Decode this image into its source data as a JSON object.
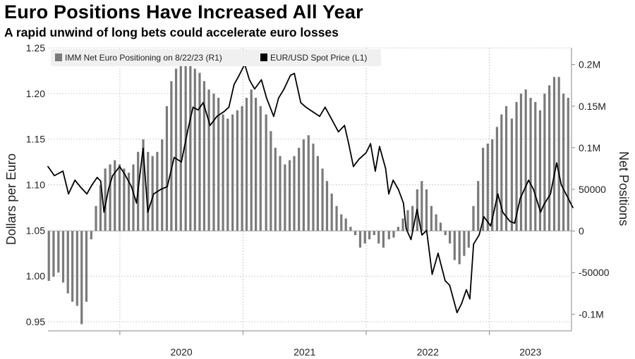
{
  "title": "Euro Positions Have Increased All Year",
  "subtitle": "A rapid unwind of long bets could accelerate euro losses",
  "colors": {
    "bars": "#7a7a7a",
    "line": "#000000",
    "grid": "#cfcfcf",
    "legend_bg": "#f0f0f0"
  },
  "chart_data": {
    "type": "bar+line",
    "grid": true,
    "legend_position": "top-left",
    "x": {
      "ticks": [
        "2020",
        "2021",
        "2022",
        "2023"
      ],
      "range": [
        "2019-06",
        "2023-09"
      ]
    },
    "y_left": {
      "label": "Dollars per Euro",
      "ticks": [
        "1.25",
        "1.20",
        "1.15",
        "1.10",
        "1.05",
        "1.00",
        "0.95"
      ],
      "range": [
        0.94,
        1.25
      ]
    },
    "y_right": {
      "label": "Net Positions",
      "ticks": [
        "0.2M",
        "0.15M",
        "0.1M",
        "50000",
        "0",
        "-50000",
        "-0.1M"
      ],
      "range": [
        -120000,
        220000
      ]
    },
    "legend": [
      {
        "name": "IMM Net Euro Positioning  on 8/22/23 (R1)",
        "type": "bar"
      },
      {
        "name": "EUR/USD Spot Price (L1)",
        "type": "line"
      }
    ],
    "series": [
      {
        "name": "IMM Net Euro Positioning  on 8/22/23 (R1)",
        "type": "bar",
        "axis": "right",
        "points": [
          [
            "2019-06-04",
            -60000
          ],
          [
            "2019-06-18",
            -55000
          ],
          [
            "2019-07-02",
            -50000
          ],
          [
            "2019-07-16",
            -62000
          ],
          [
            "2019-07-30",
            -75000
          ],
          [
            "2019-08-13",
            -85000
          ],
          [
            "2019-08-27",
            -90000
          ],
          [
            "2019-09-10",
            -112000
          ],
          [
            "2019-09-24",
            -85000
          ],
          [
            "2019-10-08",
            -10000
          ],
          [
            "2019-10-22",
            30000
          ],
          [
            "2019-11-05",
            55000
          ],
          [
            "2019-11-19",
            75000
          ],
          [
            "2019-12-03",
            80000
          ],
          [
            "2019-12-17",
            85000
          ],
          [
            "2019-12-31",
            80000
          ],
          [
            "2020-01-14",
            75000
          ],
          [
            "2020-01-28",
            70000
          ],
          [
            "2020-02-11",
            80000
          ],
          [
            "2020-02-25",
            95000
          ],
          [
            "2020-03-10",
            110000
          ],
          [
            "2020-03-24",
            95000
          ],
          [
            "2020-04-07",
            90000
          ],
          [
            "2020-04-21",
            95000
          ],
          [
            "2020-05-05",
            110000
          ],
          [
            "2020-05-19",
            150000
          ],
          [
            "2020-06-02",
            180000
          ],
          [
            "2020-06-16",
            195000
          ],
          [
            "2020-06-30",
            200000
          ],
          [
            "2020-07-14",
            210000
          ],
          [
            "2020-07-28",
            200000
          ],
          [
            "2020-08-11",
            195000
          ],
          [
            "2020-08-25",
            190000
          ],
          [
            "2020-09-08",
            180000
          ],
          [
            "2020-09-22",
            170000
          ],
          [
            "2020-10-06",
            165000
          ],
          [
            "2020-10-20",
            160000
          ],
          [
            "2020-11-03",
            140000
          ],
          [
            "2020-11-17",
            135000
          ],
          [
            "2020-12-01",
            140000
          ],
          [
            "2020-12-15",
            145000
          ],
          [
            "2020-12-29",
            150000
          ],
          [
            "2021-01-12",
            160000
          ],
          [
            "2021-01-26",
            170000
          ],
          [
            "2021-02-09",
            160000
          ],
          [
            "2021-02-23",
            150000
          ],
          [
            "2021-03-09",
            140000
          ],
          [
            "2021-03-23",
            120000
          ],
          [
            "2021-04-06",
            100000
          ],
          [
            "2021-04-20",
            90000
          ],
          [
            "2021-05-04",
            80000
          ],
          [
            "2021-05-18",
            85000
          ],
          [
            "2021-06-01",
            90000
          ],
          [
            "2021-06-15",
            100000
          ],
          [
            "2021-06-29",
            110000
          ],
          [
            "2021-07-13",
            115000
          ],
          [
            "2021-07-27",
            105000
          ],
          [
            "2021-08-10",
            90000
          ],
          [
            "2021-08-24",
            75000
          ],
          [
            "2021-09-07",
            60000
          ],
          [
            "2021-09-21",
            45000
          ],
          [
            "2021-10-05",
            30000
          ],
          [
            "2021-10-19",
            20000
          ],
          [
            "2021-11-02",
            15000
          ],
          [
            "2021-11-16",
            5000
          ],
          [
            "2021-11-30",
            -5000
          ],
          [
            "2021-12-14",
            -20000
          ],
          [
            "2021-12-28",
            -15000
          ],
          [
            "2022-01-11",
            -10000
          ],
          [
            "2022-01-25",
            -5000
          ],
          [
            "2022-02-08",
            -15000
          ],
          [
            "2022-02-22",
            -20000
          ],
          [
            "2022-03-08",
            -10000
          ],
          [
            "2022-03-22",
            -8000
          ],
          [
            "2022-04-05",
            5000
          ],
          [
            "2022-04-19",
            15000
          ],
          [
            "2022-05-03",
            25000
          ],
          [
            "2022-05-17",
            30000
          ],
          [
            "2022-05-31",
            50000
          ],
          [
            "2022-06-14",
            60000
          ],
          [
            "2022-06-28",
            50000
          ],
          [
            "2022-07-12",
            30000
          ],
          [
            "2022-07-26",
            20000
          ],
          [
            "2022-08-09",
            10000
          ],
          [
            "2022-08-23",
            -5000
          ],
          [
            "2022-09-06",
            -15000
          ],
          [
            "2022-09-20",
            -35000
          ],
          [
            "2022-10-04",
            -40000
          ],
          [
            "2022-10-18",
            -30000
          ],
          [
            "2022-11-01",
            -20000
          ],
          [
            "2022-11-15",
            30000
          ],
          [
            "2022-11-29",
            60000
          ],
          [
            "2022-12-13",
            100000
          ],
          [
            "2022-12-27",
            105000
          ],
          [
            "2023-01-10",
            110000
          ],
          [
            "2023-01-24",
            125000
          ],
          [
            "2023-02-07",
            140000
          ],
          [
            "2023-02-21",
            150000
          ],
          [
            "2023-03-07",
            135000
          ],
          [
            "2023-03-21",
            155000
          ],
          [
            "2023-04-04",
            165000
          ],
          [
            "2023-04-18",
            170000
          ],
          [
            "2023-05-02",
            160000
          ],
          [
            "2023-05-16",
            155000
          ],
          [
            "2023-05-30",
            145000
          ],
          [
            "2023-06-13",
            165000
          ],
          [
            "2023-06-27",
            175000
          ],
          [
            "2023-07-11",
            185000
          ],
          [
            "2023-07-25",
            185000
          ],
          [
            "2023-08-08",
            165000
          ],
          [
            "2023-08-22",
            160000
          ]
        ]
      },
      {
        "name": "EUR/USD Spot Price (L1)",
        "type": "line",
        "axis": "left",
        "points": [
          [
            "2019-06-01",
            1.12
          ],
          [
            "2019-06-20",
            1.11
          ],
          [
            "2019-07-15",
            1.115
          ],
          [
            "2019-08-01",
            1.09
          ],
          [
            "2019-08-20",
            1.105
          ],
          [
            "2019-09-05",
            1.098
          ],
          [
            "2019-09-25",
            1.09
          ],
          [
            "2019-10-10",
            1.1
          ],
          [
            "2019-10-25",
            1.108
          ],
          [
            "2019-11-05",
            1.104
          ],
          [
            "2019-11-15",
            1.07
          ],
          [
            "2019-11-28",
            1.095
          ],
          [
            "2019-12-10",
            1.11
          ],
          [
            "2019-12-31",
            1.12
          ],
          [
            "2020-01-15",
            1.112
          ],
          [
            "2020-02-05",
            1.098
          ],
          [
            "2020-02-20",
            1.08
          ],
          [
            "2020-03-09",
            1.14
          ],
          [
            "2020-03-23",
            1.07
          ],
          [
            "2020-04-10",
            1.09
          ],
          [
            "2020-05-01",
            1.095
          ],
          [
            "2020-05-20",
            1.098
          ],
          [
            "2020-06-10",
            1.13
          ],
          [
            "2020-07-01",
            1.125
          ],
          [
            "2020-07-20",
            1.16
          ],
          [
            "2020-08-05",
            1.185
          ],
          [
            "2020-08-20",
            1.182
          ],
          [
            "2020-09-05",
            1.19
          ],
          [
            "2020-09-25",
            1.165
          ],
          [
            "2020-10-15",
            1.175
          ],
          [
            "2020-11-05",
            1.18
          ],
          [
            "2020-11-20",
            1.185
          ],
          [
            "2020-12-05",
            1.21
          ],
          [
            "2020-12-20",
            1.22
          ],
          [
            "2021-01-06",
            1.232
          ],
          [
            "2021-01-20",
            1.215
          ],
          [
            "2021-02-05",
            1.205
          ],
          [
            "2021-02-25",
            1.215
          ],
          [
            "2021-03-10",
            1.195
          ],
          [
            "2021-03-31",
            1.175
          ],
          [
            "2021-04-15",
            1.195
          ],
          [
            "2021-05-01",
            1.205
          ],
          [
            "2021-05-20",
            1.22
          ],
          [
            "2021-06-01",
            1.222
          ],
          [
            "2021-06-20",
            1.19
          ],
          [
            "2021-07-05",
            1.185
          ],
          [
            "2021-07-25",
            1.18
          ],
          [
            "2021-08-15",
            1.175
          ],
          [
            "2021-09-01",
            1.185
          ],
          [
            "2021-09-20",
            1.172
          ],
          [
            "2021-10-10",
            1.158
          ],
          [
            "2021-10-28",
            1.165
          ],
          [
            "2021-11-10",
            1.145
          ],
          [
            "2021-11-24",
            1.12
          ],
          [
            "2021-12-10",
            1.128
          ],
          [
            "2021-12-31",
            1.135
          ],
          [
            "2022-01-14",
            1.145
          ],
          [
            "2022-01-28",
            1.115
          ],
          [
            "2022-02-10",
            1.142
          ],
          [
            "2022-02-28",
            1.118
          ],
          [
            "2022-03-07",
            1.09
          ],
          [
            "2022-03-20",
            1.105
          ],
          [
            "2022-04-05",
            1.095
          ],
          [
            "2022-04-20",
            1.08
          ],
          [
            "2022-04-28",
            1.052
          ],
          [
            "2022-05-12",
            1.04
          ],
          [
            "2022-05-30",
            1.073
          ],
          [
            "2022-06-14",
            1.045
          ],
          [
            "2022-06-28",
            1.05
          ],
          [
            "2022-07-14",
            1.002
          ],
          [
            "2022-08-01",
            1.025
          ],
          [
            "2022-08-22",
            0.995
          ],
          [
            "2022-09-05",
            0.99
          ],
          [
            "2022-09-27",
            0.96
          ],
          [
            "2022-10-10",
            0.97
          ],
          [
            "2022-10-24",
            0.985
          ],
          [
            "2022-11-04",
            0.975
          ],
          [
            "2022-11-15",
            1.035
          ],
          [
            "2022-12-01",
            1.045
          ],
          [
            "2022-12-15",
            1.065
          ],
          [
            "2023-01-05",
            1.055
          ],
          [
            "2023-01-26",
            1.09
          ],
          [
            "2023-02-10",
            1.07
          ],
          [
            "2023-03-01",
            1.06
          ],
          [
            "2023-03-15",
            1.058
          ],
          [
            "2023-04-01",
            1.085
          ],
          [
            "2023-04-26",
            1.105
          ],
          [
            "2023-05-10",
            1.095
          ],
          [
            "2023-05-31",
            1.07
          ],
          [
            "2023-06-10",
            1.078
          ],
          [
            "2023-06-30",
            1.09
          ],
          [
            "2023-07-18",
            1.124
          ],
          [
            "2023-08-01",
            1.1
          ],
          [
            "2023-08-15",
            1.09
          ],
          [
            "2023-08-22",
            1.085
          ],
          [
            "2023-09-05",
            1.075
          ]
        ]
      }
    ]
  }
}
